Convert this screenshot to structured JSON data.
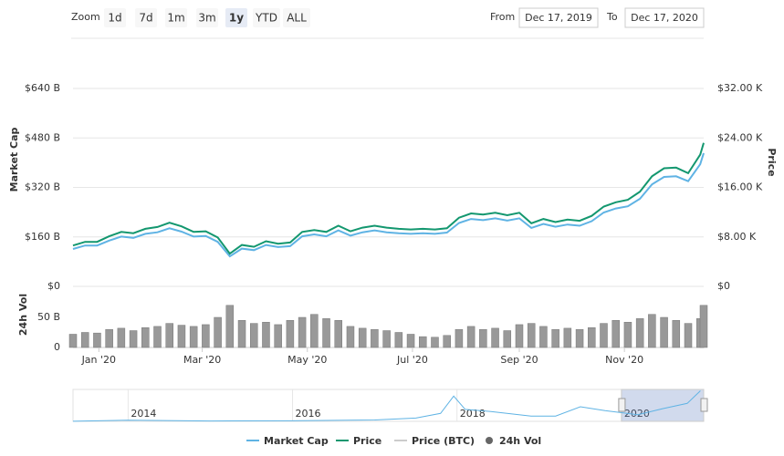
{
  "chart_data": {
    "type": "line",
    "zoom": {
      "label": "Zoom",
      "buttons": [
        "1d",
        "7d",
        "1m",
        "3m",
        "1y",
        "YTD",
        "ALL"
      ],
      "selected": 4
    },
    "range": {
      "from_label": "From",
      "from": "Dec 17, 2019",
      "to_label": "To",
      "to": "Dec 17, 2020"
    },
    "y_label": "Market Cap",
    "y2_label": "Price",
    "x": [
      "2019-12-17",
      "2019-12-24",
      "2019-12-31",
      "2020-01-07",
      "2020-01-14",
      "2020-01-21",
      "2020-01-28",
      "2020-02-04",
      "2020-02-11",
      "2020-02-18",
      "2020-02-25",
      "2020-03-03",
      "2020-03-10",
      "2020-03-17",
      "2020-03-24",
      "2020-03-31",
      "2020-04-07",
      "2020-04-14",
      "2020-04-21",
      "2020-04-28",
      "2020-05-05",
      "2020-05-12",
      "2020-05-19",
      "2020-05-26",
      "2020-06-02",
      "2020-06-09",
      "2020-06-16",
      "2020-06-23",
      "2020-06-30",
      "2020-07-07",
      "2020-07-14",
      "2020-07-21",
      "2020-07-28",
      "2020-08-04",
      "2020-08-11",
      "2020-08-18",
      "2020-08-25",
      "2020-09-01",
      "2020-09-08",
      "2020-09-15",
      "2020-09-22",
      "2020-09-29",
      "2020-10-06",
      "2020-10-13",
      "2020-10-20",
      "2020-10-27",
      "2020-11-03",
      "2020-11-10",
      "2020-11-17",
      "2020-11-24",
      "2020-12-01",
      "2020-12-08",
      "2020-12-15",
      "2020-12-17"
    ],
    "xlim": [
      "2019-12-17",
      "2020-12-17"
    ],
    "xticks": [
      {
        "value": "2020-01-01",
        "label": "Jan '20"
      },
      {
        "value": "2020-03-01",
        "label": "Mar '20"
      },
      {
        "value": "2020-05-01",
        "label": "May '20"
      },
      {
        "value": "2020-07-01",
        "label": "Jul '20"
      },
      {
        "value": "2020-09-01",
        "label": "Sep '20"
      },
      {
        "value": "2020-11-01",
        "label": "Nov '20"
      }
    ],
    "ylim": [
      0,
      640
    ],
    "yticks": [
      {
        "value": 0,
        "label": "$0"
      },
      {
        "value": 160,
        "label": "$160 B"
      },
      {
        "value": 320,
        "label": "$320 B"
      },
      {
        "value": 480,
        "label": "$480 B"
      },
      {
        "value": 640,
        "label": "$640 B"
      }
    ],
    "y2lim": [
      0,
      32
    ],
    "y2ticks": [
      {
        "value": 0,
        "label": "$0"
      },
      {
        "value": 8,
        "label": "$8.00 K"
      },
      {
        "value": 16,
        "label": "$16.00 K"
      },
      {
        "value": 24,
        "label": "$24.00 K"
      },
      {
        "value": 32,
        "label": "$32.00 K"
      }
    ],
    "grid": true,
    "series": [
      {
        "name": "Market Cap",
        "color": "#5fb3e4",
        "values": [
          121,
          132,
          132,
          148,
          161,
          157,
          170,
          175,
          188,
          177,
          161,
          163,
          144,
          97,
          122,
          117,
          134,
          127,
          130,
          162,
          168,
          162,
          181,
          164,
          175,
          181,
          175,
          172,
          170,
          172,
          170,
          174,
          205,
          218,
          214,
          220,
          213,
          220,
          189,
          202,
          193,
          200,
          196,
          211,
          239,
          252,
          259,
          283,
          330,
          354,
          356,
          340,
          395,
          431
        ]
      },
      {
        "name": "Price",
        "color": "#13976f",
        "axis": "y2",
        "values": [
          6.6,
          7.2,
          7.2,
          8.1,
          8.8,
          8.6,
          9.3,
          9.6,
          10.3,
          9.7,
          8.8,
          8.9,
          7.9,
          5.3,
          6.7,
          6.4,
          7.3,
          6.9,
          7.1,
          8.8,
          9.1,
          8.8,
          9.8,
          8.9,
          9.5,
          9.8,
          9.5,
          9.3,
          9.2,
          9.3,
          9.2,
          9.4,
          11.1,
          11.8,
          11.6,
          11.9,
          11.5,
          11.9,
          10.2,
          10.9,
          10.4,
          10.8,
          10.6,
          11.4,
          12.9,
          13.6,
          14.0,
          15.3,
          17.8,
          19.1,
          19.2,
          18.3,
          21.3,
          23.2
        ]
      }
    ],
    "hidden_series": [
      {
        "name": "Price (BTC)",
        "color": "#cccccc"
      }
    ],
    "volume": {
      "name": "24h Vol",
      "color": "#999999",
      "ylim": [
        0,
        100
      ],
      "yticks": [
        0,
        {
          "value": 50,
          "label": "50 B"
        }
      ],
      "values": [
        22,
        25,
        24,
        30,
        32,
        28,
        33,
        35,
        40,
        37,
        35,
        38,
        50,
        70,
        45,
        40,
        42,
        38,
        45,
        50,
        55,
        48,
        45,
        35,
        32,
        30,
        28,
        25,
        22,
        18,
        17,
        20,
        30,
        35,
        30,
        32,
        28,
        38,
        40,
        35,
        30,
        32,
        30,
        33,
        40,
        45,
        42,
        48,
        55,
        50,
        45,
        40,
        48,
        70
      ]
    },
    "navigator": {
      "color": "#5fb3e4",
      "xlim": [
        2013.33,
        2021
      ],
      "ylim": [
        0,
        24
      ],
      "xticks": [
        2014,
        2016,
        2018,
        2020
      ],
      "selection": [
        2020.0,
        2021
      ],
      "x": [
        2013.33,
        2014.0,
        2015.0,
        2016.0,
        2017.0,
        2017.5,
        2017.8,
        2017.96,
        2018.1,
        2018.4,
        2018.9,
        2019.2,
        2019.5,
        2019.8,
        2020.2,
        2020.5,
        2020.8,
        2020.96
      ],
      "values": [
        0.1,
        0.8,
        0.3,
        0.4,
        1.0,
        2.5,
        6,
        19,
        9,
        7.5,
        4,
        4,
        11,
        8,
        5,
        9.5,
        13.5,
        23
      ]
    }
  }
}
